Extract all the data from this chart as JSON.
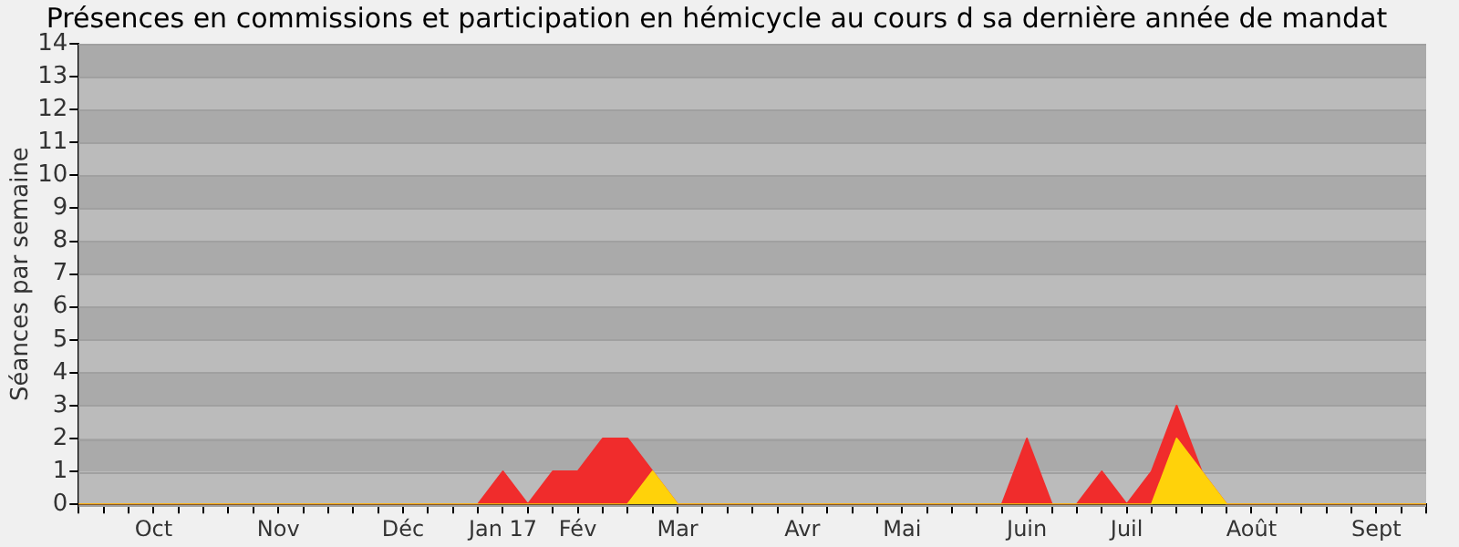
{
  "chart_data": {
    "type": "area",
    "title": "Présences en commissions et participation en hémicycle au cours d sa dernière année de mandat",
    "ylabel": "Séances par semaine",
    "categories": [
      null,
      null,
      null,
      "Oct",
      null,
      null,
      null,
      null,
      "Nov",
      null,
      null,
      null,
      null,
      "Déc",
      null,
      null,
      null,
      "Jan 17",
      null,
      null,
      "Fév",
      null,
      null,
      null,
      "Mar",
      null,
      null,
      null,
      null,
      "Avr",
      null,
      null,
      null,
      "Mai",
      null,
      null,
      null,
      null,
      "Juin",
      null,
      null,
      null,
      "Juil",
      null,
      null,
      null,
      null,
      "Août",
      null,
      null,
      null,
      null,
      "Sept",
      null,
      null
    ],
    "stacked": true,
    "series": [
      {
        "color": "#ffd20a",
        "values": [
          0,
          0,
          0,
          0,
          0,
          0,
          0,
          0,
          0,
          0,
          0,
          0,
          0,
          0,
          0,
          0,
          0,
          0,
          0,
          0,
          0,
          0,
          0,
          1,
          0,
          0,
          0,
          0,
          0,
          0,
          0,
          0,
          0,
          0,
          0,
          0,
          0,
          0,
          0,
          0,
          0,
          0,
          0,
          0,
          2,
          1,
          0,
          0,
          0,
          0,
          0,
          0,
          0,
          0,
          0
        ]
      },
      {
        "color": "#f02c2c",
        "values": [
          0,
          0,
          0,
          0,
          0,
          0,
          0,
          0,
          0,
          0,
          0,
          0,
          0,
          0,
          0,
          0,
          0,
          1,
          0,
          1,
          1,
          2,
          2,
          0,
          0,
          0,
          0,
          0,
          0,
          0,
          0,
          0,
          0,
          0,
          0,
          0,
          0,
          0,
          2,
          0,
          0,
          1,
          0,
          1,
          1,
          0,
          0,
          0,
          0,
          0,
          0,
          0,
          0,
          0,
          0
        ]
      }
    ],
    "ylim": [
      0,
      14
    ],
    "yticks": [
      0,
      1,
      2,
      3,
      4,
      5,
      6,
      7,
      8,
      9,
      10,
      11,
      12,
      13,
      14
    ],
    "grid": "y",
    "legend": false
  }
}
